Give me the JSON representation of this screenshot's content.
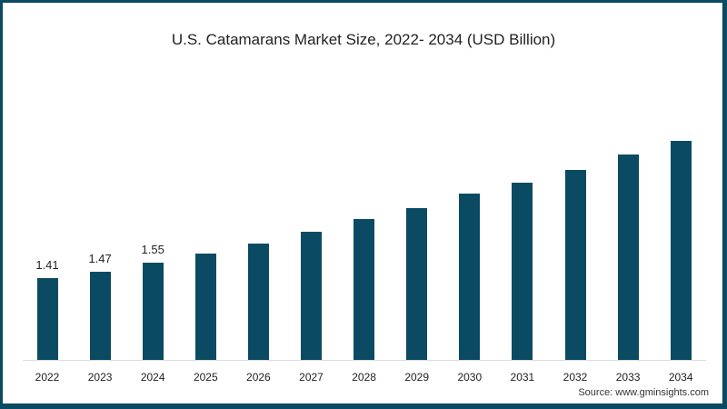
{
  "chart_data": {
    "type": "bar",
    "title": "U.S. Catamarans Market Size, 2022- 2034 (USD Billion)",
    "xlabel": "",
    "ylabel": "USD Billion",
    "categories": [
      "2022",
      "2023",
      "2024",
      "2025",
      "2026",
      "2027",
      "2028",
      "2029",
      "2030",
      "2031",
      "2032",
      "2033",
      "2034"
    ],
    "values": [
      1.41,
      1.47,
      1.55,
      1.63,
      1.72,
      1.83,
      1.95,
      2.05,
      2.18,
      2.28,
      2.39,
      2.53,
      2.66
    ],
    "data_labels": [
      "1.41",
      "1.47",
      "1.55",
      "",
      "",
      "",
      "",
      "",
      "",
      "",
      "",
      "",
      ""
    ],
    "grid": false,
    "legend": null,
    "bar_color": "#0b4a63",
    "source": "Source: www.gminsights.com"
  }
}
